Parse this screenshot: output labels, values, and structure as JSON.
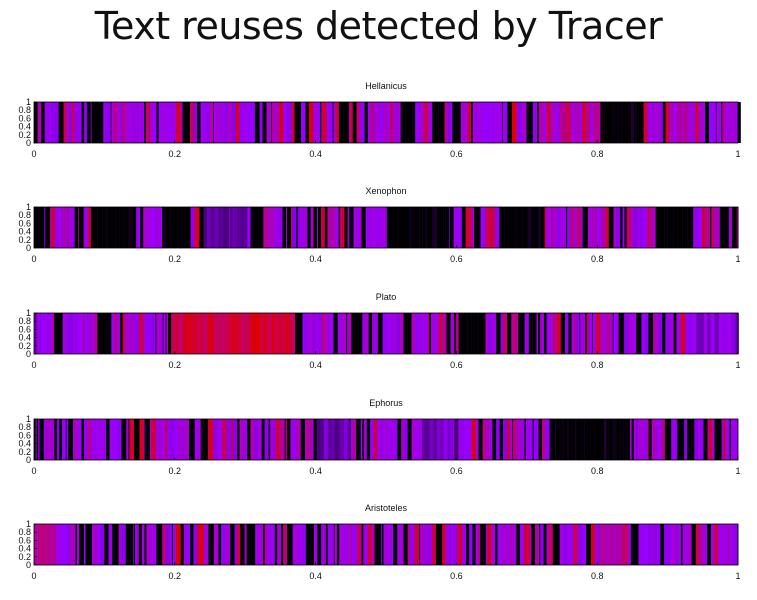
{
  "page": {
    "title": "Text reuses detected by Tracer"
  },
  "chart_data": [
    {
      "type": "heatmap",
      "title": "Hellanicus",
      "xlim": [
        0,
        1
      ],
      "ylim": [
        0,
        1
      ],
      "xticks": [
        "0",
        "0.2",
        "0.4",
        "0.6",
        "0.8",
        "1"
      ],
      "yticks": [
        "0",
        "0.2",
        "0.4",
        "0.6",
        "0.8",
        "1"
      ],
      "bands": [
        {
          "x0": 0.8,
          "x1": 0.86,
          "level": 0.0
        },
        {
          "x0": 0.52,
          "x1": 0.54,
          "level": 0.0
        },
        {
          "x0": 0.9,
          "x1": 0.93,
          "level": 0.6
        }
      ],
      "dominant": "violet-magenta with dark regions",
      "seed": 11
    },
    {
      "type": "heatmap",
      "title": "Xenophon",
      "xlim": [
        0,
        1
      ],
      "ylim": [
        0,
        1
      ],
      "xticks": [
        "0",
        "0.2",
        "0.4",
        "0.6",
        "0.8",
        "1"
      ],
      "yticks": [
        "0",
        "0.2",
        "0.4",
        "0.6",
        "0.8",
        "1"
      ],
      "bands": [
        {
          "x0": 0.0,
          "x1": 0.01,
          "level": 0.0
        },
        {
          "x0": 0.08,
          "x1": 0.14,
          "level": 0.0
        },
        {
          "x0": 0.18,
          "x1": 0.22,
          "level": 0.0
        },
        {
          "x0": 0.24,
          "x1": 0.3,
          "level": 0.35
        },
        {
          "x0": 0.5,
          "x1": 0.58,
          "level": 0.0
        },
        {
          "x0": 0.66,
          "x1": 0.72,
          "level": 0.0
        },
        {
          "x0": 0.88,
          "x1": 0.93,
          "level": 0.0
        }
      ],
      "dominant": "dark with violet regions",
      "seed": 23
    },
    {
      "type": "heatmap",
      "title": "Plato",
      "xlim": [
        0,
        1
      ],
      "ylim": [
        0,
        1
      ],
      "xticks": [
        "0",
        "0.2",
        "0.4",
        "0.6",
        "0.8",
        "1"
      ],
      "yticks": [
        "0",
        "0.2",
        "0.4",
        "0.6",
        "0.8",
        "1"
      ],
      "bands": [
        {
          "x0": 0.2,
          "x1": 0.37,
          "level": 0.9
        },
        {
          "x0": 0.6,
          "x1": 0.64,
          "level": 0.0
        },
        {
          "x0": 0.92,
          "x1": 1.0,
          "level": 0.45
        }
      ],
      "dominant": "violet with red region near 0.2-0.37",
      "seed": 37
    },
    {
      "type": "heatmap",
      "title": "Ephorus",
      "xlim": [
        0,
        1
      ],
      "ylim": [
        0,
        1
      ],
      "xticks": [
        "0",
        "0.2",
        "0.4",
        "0.6",
        "0.8",
        "1"
      ],
      "yticks": [
        "0",
        "0.2",
        "0.4",
        "0.6",
        "0.8",
        "1"
      ],
      "bands": [
        {
          "x0": 0.73,
          "x1": 0.84,
          "level": 0.0
        },
        {
          "x0": 0.4,
          "x1": 0.45,
          "level": 0.35
        },
        {
          "x0": 0.55,
          "x1": 0.6,
          "level": 0.35
        }
      ],
      "dominant": "violet with dark region near 0.73-0.84",
      "seed": 53
    },
    {
      "type": "heatmap",
      "title": "Aristoteles",
      "xlim": [
        0,
        1
      ],
      "ylim": [
        0,
        1
      ],
      "xticks": [
        "0",
        "0.2",
        "0.4",
        "0.6",
        "0.8",
        "1"
      ],
      "yticks": [
        "0",
        "0.2",
        "0.4",
        "0.6",
        "0.8",
        "1"
      ],
      "bands": [
        {
          "x0": 0.0,
          "x1": 0.03,
          "level": 0.7
        },
        {
          "x0": 0.8,
          "x1": 0.84,
          "level": 0.7
        }
      ],
      "dominant": "magenta-purple dense",
      "seed": 71
    }
  ],
  "colors": {
    "low": "#000000",
    "mid": "#9a00ff",
    "high": "#e00000"
  }
}
